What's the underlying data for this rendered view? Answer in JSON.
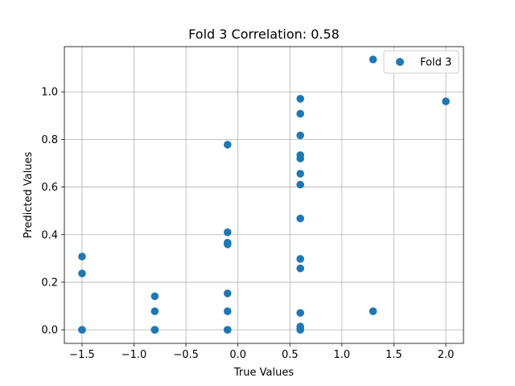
{
  "chart_data": {
    "type": "scatter",
    "title": "Fold 3 Correlation: 0.58",
    "xlabel": "True Values",
    "ylabel": "Predicted Values",
    "xlim": [
      -1.67,
      2.17
    ],
    "ylim": [
      -0.057,
      1.19
    ],
    "xticks": [
      -1.5,
      -1.0,
      -0.5,
      0.0,
      0.5,
      1.0,
      1.5,
      2.0
    ],
    "xtick_labels": [
      "−1.5",
      "−1.0",
      "−0.5",
      "0.0",
      "0.5",
      "1.0",
      "1.5",
      "2.0"
    ],
    "yticks": [
      0.0,
      0.2,
      0.4,
      0.6,
      0.8,
      1.0
    ],
    "ytick_labels": [
      "0.0",
      "0.2",
      "0.4",
      "0.6",
      "0.8",
      "1.0"
    ],
    "grid": true,
    "legend_position": "top-right",
    "series": [
      {
        "name": "Fold 3",
        "color": "#1f77b4",
        "points": [
          [
            -1.5,
            0.308
          ],
          [
            -1.5,
            0.237
          ],
          [
            -1.5,
            0.0
          ],
          [
            -1.5,
            0.0
          ],
          [
            -0.8,
            0.141
          ],
          [
            -0.8,
            0.078
          ],
          [
            -0.8,
            0.0
          ],
          [
            -0.8,
            0.0
          ],
          [
            -0.8,
            0.0
          ],
          [
            -0.1,
            0.778
          ],
          [
            -0.1,
            0.41
          ],
          [
            -0.1,
            0.366
          ],
          [
            -0.1,
            0.359
          ],
          [
            -0.1,
            0.153
          ],
          [
            -0.1,
            0.078
          ],
          [
            -0.1,
            0.0
          ],
          [
            -0.1,
            0.0
          ],
          [
            0.6,
            0.971
          ],
          [
            0.6,
            0.908
          ],
          [
            0.6,
            0.817
          ],
          [
            0.6,
            0.734
          ],
          [
            0.6,
            0.72
          ],
          [
            0.6,
            0.656
          ],
          [
            0.6,
            0.61
          ],
          [
            0.6,
            0.468
          ],
          [
            0.6,
            0.298
          ],
          [
            0.6,
            0.258
          ],
          [
            0.6,
            0.071
          ],
          [
            0.6,
            0.014
          ],
          [
            0.6,
            0.005
          ],
          [
            0.6,
            0.0
          ],
          [
            1.3,
            1.136
          ],
          [
            1.3,
            0.078
          ],
          [
            2.0,
            0.96
          ]
        ]
      }
    ]
  }
}
